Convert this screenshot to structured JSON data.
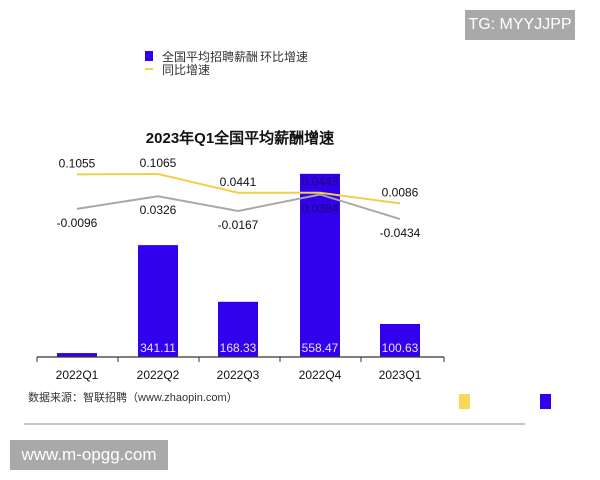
{
  "watermarks": {
    "top": "TG: MYYJJPP",
    "bottom": "www.m-opgg.com"
  },
  "source": "数据来源：智联招聘（www.zhaopin.com）",
  "colors": {
    "bar": "#3300ee",
    "yoy": "#f2cf4a",
    "qoq": "#a8a8a8"
  },
  "chart_data": {
    "type": "bar+line",
    "title": "2023年Q1全国平均薪酬增速",
    "categories": [
      "2022Q1",
      "2022Q2",
      "2022Q3",
      "2022Q4",
      "2023Q1"
    ],
    "series": [
      {
        "name": "全国平均招聘薪酬",
        "type": "bar",
        "values": [
          12,
          341.11,
          168.33,
          558.47,
          100.63
        ],
        "labels": [
          "",
          "341.11",
          "168.33",
          "558.47",
          "100.63"
        ]
      },
      {
        "name": "环比增速",
        "type": "line",
        "values": [
          -0.0096,
          0.0326,
          -0.0167,
          0.0384,
          -0.0434
        ],
        "labels": [
          "-0.0096",
          "0.0326",
          "-0.0167",
          "0.0384",
          "-0.0434"
        ]
      },
      {
        "name": "同比增速",
        "type": "line",
        "values": [
          0.1055,
          0.1065,
          0.0441,
          0.0443,
          0.0086
        ],
        "labels": [
          "0.1055",
          "0.1065",
          "0.0441",
          "0.0443",
          "0.0086"
        ]
      }
    ],
    "legend": "top",
    "grid": false
  }
}
